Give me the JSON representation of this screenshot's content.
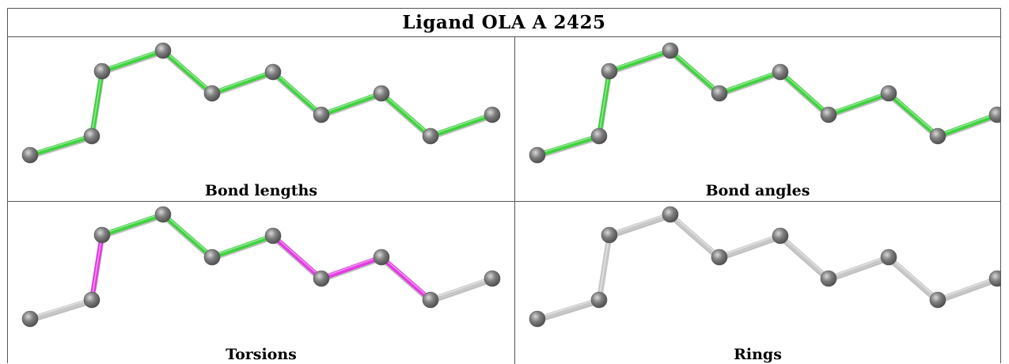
{
  "title": "Ligand OLA A 2425",
  "panels": [
    {
      "caption": "Bond lengths",
      "bonds": [
        "green",
        "green",
        "green",
        "green",
        "green",
        "green",
        "green",
        "green",
        "green"
      ]
    },
    {
      "caption": "Bond angles",
      "bonds": [
        "green",
        "green",
        "green",
        "green",
        "green",
        "green",
        "green",
        "green",
        "green"
      ]
    },
    {
      "caption": "Torsions",
      "bonds": [
        "gray",
        "magenta",
        "green",
        "green",
        "green",
        "magenta",
        "magenta",
        "magenta",
        "gray"
      ]
    },
    {
      "caption": "Rings",
      "bonds": [
        "gray",
        "gray",
        "gray",
        "gray",
        "gray",
        "gray",
        "gray",
        "gray",
        "gray"
      ]
    }
  ],
  "colors": {
    "green": "#3fd23f",
    "magenta": "#e23ce2",
    "gray": "#c8c8c8",
    "atom": "#808080"
  }
}
